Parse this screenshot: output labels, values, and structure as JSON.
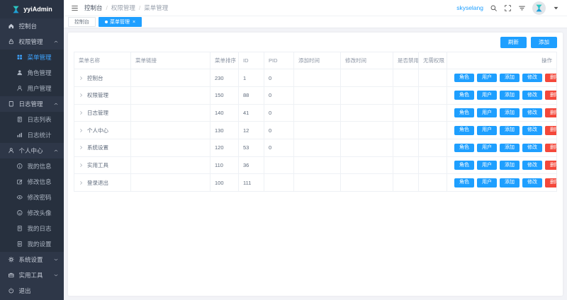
{
  "colors": {
    "accent": "#1e9fff",
    "danger": "#f4483b",
    "sidebar_bg": "#2e3748",
    "sidebar_sub_bg": "#27303e",
    "active_link": "#3ea4ff"
  },
  "logo": {
    "text": "yyiAdmin",
    "icon": "logo-mark"
  },
  "sidebar": {
    "items": [
      {
        "id": "console",
        "label": "控制台",
        "icon": "home",
        "level": 1
      },
      {
        "id": "auth-manage",
        "label": "权限管理",
        "icon": "lock",
        "level": 1,
        "chevron": "up"
      },
      {
        "id": "menu-manage",
        "label": "菜单管理",
        "icon": "grid",
        "level": 2,
        "active": true
      },
      {
        "id": "role-manage",
        "label": "角色管理",
        "icon": "user-filled",
        "level": 2
      },
      {
        "id": "user-manage",
        "label": "用户管理",
        "icon": "user-outline",
        "level": 2
      },
      {
        "id": "log-manage",
        "label": "日志管理",
        "icon": "file",
        "level": 1,
        "chevron": "up"
      },
      {
        "id": "log-list",
        "label": "日志列表",
        "icon": "doc-lines",
        "level": 2
      },
      {
        "id": "log-stats",
        "label": "日志统计",
        "icon": "bar-chart",
        "level": 2
      },
      {
        "id": "personal-center",
        "label": "个人中心",
        "icon": "person",
        "level": 1,
        "chevron": "up"
      },
      {
        "id": "my-info",
        "label": "我的信息",
        "icon": "info-circle",
        "level": 2
      },
      {
        "id": "edit-info",
        "label": "修改信息",
        "icon": "edit",
        "level": 2
      },
      {
        "id": "edit-password",
        "label": "修改密码",
        "icon": "eye",
        "level": 2
      },
      {
        "id": "edit-avatar",
        "label": "修改头像",
        "icon": "face",
        "level": 2
      },
      {
        "id": "my-log",
        "label": "我的日志",
        "icon": "doc",
        "level": 2
      },
      {
        "id": "my-settings",
        "label": "我的设置",
        "icon": "doc-gear",
        "level": 2
      },
      {
        "id": "system-settings",
        "label": "系统设置",
        "icon": "gear",
        "level": 1,
        "chevron": "down"
      },
      {
        "id": "utility-tools",
        "label": "实用工具",
        "icon": "briefcase",
        "level": 1,
        "chevron": "down"
      },
      {
        "id": "logout",
        "label": "退出",
        "icon": "power",
        "level": 1
      }
    ]
  },
  "header": {
    "breadcrumb": [
      "控制台",
      "权限管理",
      "菜单管理"
    ],
    "separator": "/",
    "username": "skyselang",
    "icons": [
      "search",
      "fullscreen",
      "clear-lines"
    ]
  },
  "tabs": {
    "items": [
      {
        "label": "控制台",
        "active": false,
        "closable": false
      },
      {
        "label": "菜单管理",
        "active": true,
        "closable": true
      }
    ],
    "close_glyph": "×"
  },
  "toolbar": {
    "refresh": "刷新",
    "add": "添加"
  },
  "table": {
    "columns": [
      "菜单名称",
      "菜单链接",
      "菜单排序",
      "ID",
      "PID",
      "添加时间",
      "修改时间",
      "是否禁用",
      "无需权限",
      "操作"
    ],
    "actions": [
      "角色",
      "用户",
      "添加",
      "修改",
      "删除"
    ],
    "rows": [
      {
        "name": "控制台",
        "link": "",
        "sort": "230",
        "id": "1",
        "pid": "0",
        "add_time": "",
        "update_time": "",
        "disabled": "",
        "no_auth": ""
      },
      {
        "name": "权限管理",
        "link": "",
        "sort": "150",
        "id": "88",
        "pid": "0",
        "add_time": "",
        "update_time": "",
        "disabled": "",
        "no_auth": ""
      },
      {
        "name": "日志管理",
        "link": "",
        "sort": "140",
        "id": "41",
        "pid": "0",
        "add_time": "",
        "update_time": "",
        "disabled": "",
        "no_auth": ""
      },
      {
        "name": "个人中心",
        "link": "",
        "sort": "130",
        "id": "12",
        "pid": "0",
        "add_time": "",
        "update_time": "",
        "disabled": "",
        "no_auth": ""
      },
      {
        "name": "系统设置",
        "link": "",
        "sort": "120",
        "id": "53",
        "pid": "0",
        "add_time": "",
        "update_time": "",
        "disabled": "",
        "no_auth": ""
      },
      {
        "name": "实用工具",
        "link": "",
        "sort": "110",
        "id": "36",
        "pid": "",
        "add_time": "",
        "update_time": "",
        "disabled": "",
        "no_auth": ""
      },
      {
        "name": "登录退出",
        "link": "",
        "sort": "100",
        "id": "111",
        "pid": "",
        "add_time": "",
        "update_time": "",
        "disabled": "",
        "no_auth": ""
      }
    ]
  }
}
